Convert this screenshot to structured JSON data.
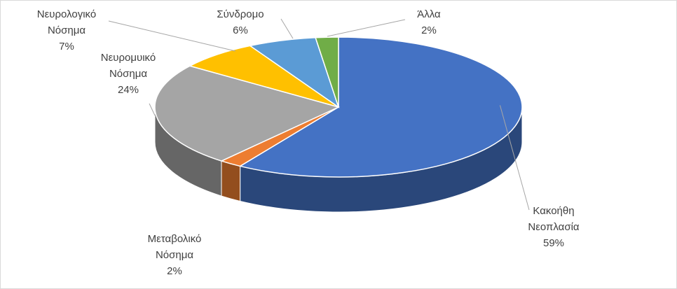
{
  "chart_data": {
    "type": "pie",
    "style": "3d",
    "series": [
      {
        "name": "",
        "slices": [
          {
            "label": [
              "Κακοήθη",
              "Νεοπλασία"
            ],
            "value": 59,
            "value_label": "59%",
            "color": "#4472c4"
          },
          {
            "label": [
              "Μεταβολικό",
              "Νόσημα"
            ],
            "value": 2,
            "value_label": "2%",
            "color": "#ed7d31"
          },
          {
            "label": [
              "Νευρομυικό",
              "Νόσημα"
            ],
            "value": 24,
            "value_label": "24%",
            "color": "#a5a5a5"
          },
          {
            "label": [
              "Νευρολογικό",
              "Νόσημα"
            ],
            "value": 7,
            "value_label": "7%",
            "color": "#ffc000"
          },
          {
            "label": [
              "Σύνδρομο"
            ],
            "value": 6,
            "value_label": "6%",
            "color": "#5b9bd5"
          },
          {
            "label": [
              "Άλλα"
            ],
            "value": 2,
            "value_label": "2%",
            "color": "#70ad47"
          }
        ]
      }
    ],
    "legend": "none",
    "data_labels": "category-and-percent"
  }
}
